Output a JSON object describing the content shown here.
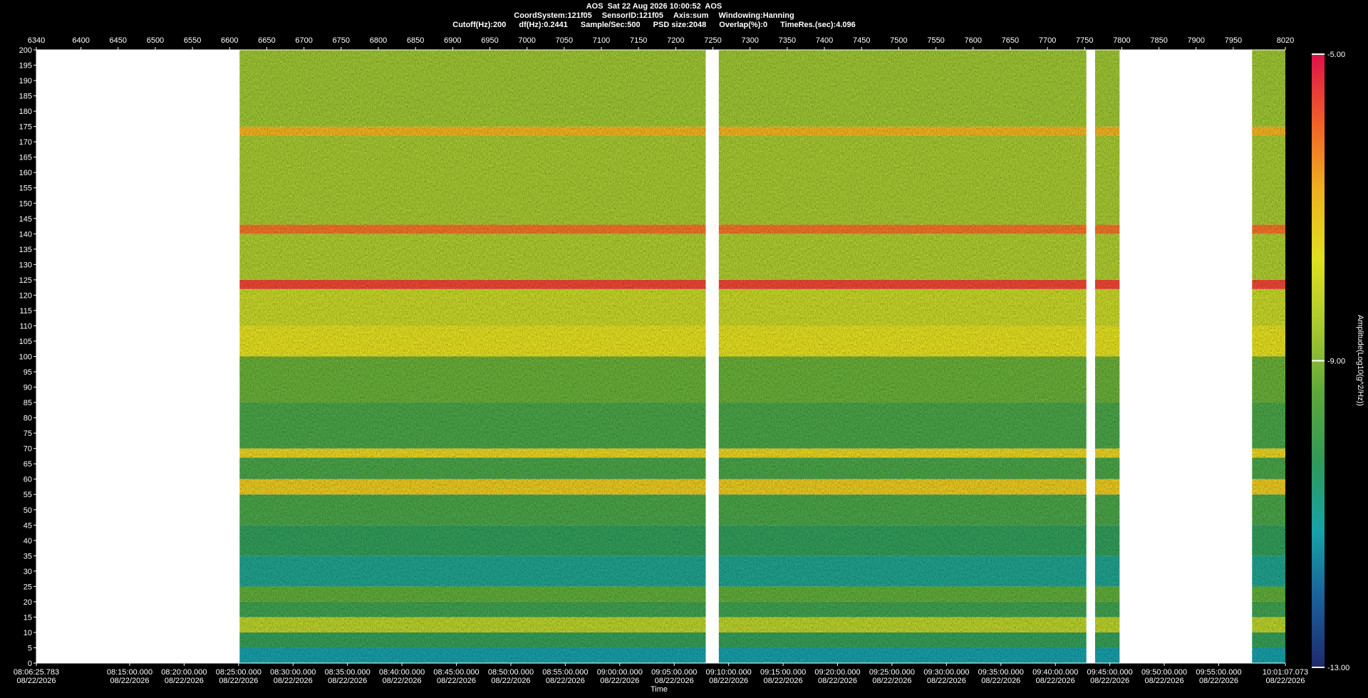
{
  "chart_data": {
    "type": "spectrogram",
    "title": "AOS  Sat 22 Aug 2026 10:00:52  AOS",
    "info_line1": [
      "CoordSystem:121f05",
      "SensorID:121f05",
      "Axis:sum",
      "Windowing:Hanning"
    ],
    "info_line2": [
      "Cutoff(Hz):200",
      "df(Hz):0.2441",
      "Sample/Sec:500",
      "PSD size:2048",
      "Overlap(%):0",
      "TimeRes.(sec):4.096"
    ],
    "x2_label": "Time",
    "colorbar_label": "Amplitude(Log10(g^2/Hz))",
    "xlim": [
      6340,
      8020
    ],
    "xticks": [
      6340,
      6400,
      6450,
      6500,
      6550,
      6600,
      6650,
      6700,
      6750,
      6800,
      6850,
      6900,
      6950,
      7000,
      7050,
      7100,
      7150,
      7200,
      7250,
      7300,
      7350,
      7400,
      7450,
      7500,
      7550,
      7600,
      7650,
      7700,
      7750,
      7800,
      7850,
      7900,
      7950,
      8020
    ],
    "ylim": [
      0,
      200
    ],
    "yticks": [
      0,
      5,
      10,
      15,
      20,
      25,
      30,
      35,
      40,
      45,
      50,
      55,
      60,
      65,
      70,
      75,
      80,
      85,
      90,
      95,
      100,
      105,
      110,
      115,
      120,
      125,
      130,
      135,
      140,
      145,
      150,
      155,
      160,
      165,
      170,
      175,
      180,
      185,
      190,
      195,
      200
    ],
    "x2lim": [
      0,
      6881.29
    ],
    "x2ticks": [
      {
        "value": 0,
        "label": "08:06:25.783"
      },
      {
        "value": 514.217,
        "label": "08:15:00.000"
      },
      {
        "value": 814.217,
        "label": "08:20:00.000"
      },
      {
        "value": 1114.217,
        "label": "08:25:00.000"
      },
      {
        "value": 1414.217,
        "label": "08:30:00.000"
      },
      {
        "value": 1714.217,
        "label": "08:35:00.000"
      },
      {
        "value": 2014.217,
        "label": "08:40:00.000"
      },
      {
        "value": 2314.217,
        "label": "08:45:00.000"
      },
      {
        "value": 2614.217,
        "label": "08:50:00.000"
      },
      {
        "value": 2914.217,
        "label": "08:55:00.000"
      },
      {
        "value": 3214.217,
        "label": "09:00:00.000"
      },
      {
        "value": 3514.217,
        "label": "09:05:00.000"
      },
      {
        "value": 3814.217,
        "label": "09:10:00.000"
      },
      {
        "value": 4114.217,
        "label": "09:15:00.000"
      },
      {
        "value": 4414.217,
        "label": "09:20:00.000"
      },
      {
        "value": 4714.217,
        "label": "09:25:00.000"
      },
      {
        "value": 5014.217,
        "label": "09:30:00.000"
      },
      {
        "value": 5314.217,
        "label": "09:35:00.000"
      },
      {
        "value": 5614.217,
        "label": "09:40:00.000"
      },
      {
        "value": 5914.217,
        "label": "09:45:00.000"
      },
      {
        "value": 6214.217,
        "label": "09:50:00.000"
      },
      {
        "value": 6514.217,
        "label": "09:55:00.000"
      },
      {
        "value": 6881.29,
        "label": "10:01:07.073"
      }
    ],
    "x2tick_dates": [
      "08/22/2026",
      "08/22/2026",
      "08/22/2026",
      "08/22/2026",
      "08/22/2026",
      "08/22/2026",
      "08/22/2026",
      "08/22/2026",
      "08/22/2026",
      "08/22/2026",
      "08/22/2026",
      "08/22/2026",
      "08/22/2026",
      "08/22/2026",
      "08/22/2026",
      "08/22/2026",
      "08/22/2026",
      "08/22/2026",
      "08/22/2026",
      "08/22/2026",
      "08/22/2026",
      "08/22/2026",
      "08/22/2026"
    ],
    "segments": [
      [
        1120,
        3688
      ],
      [
        3760,
        5785
      ],
      [
        5833,
        5968
      ],
      [
        6698,
        6881.29
      ]
    ],
    "zlim": [
      -13,
      -5
    ],
    "zticks": [
      {
        "value": -5,
        "label": "-5.00"
      },
      {
        "value": -9,
        "label": "-9.00"
      },
      {
        "value": -13,
        "label": "-13.00"
      }
    ],
    "colormap": [
      "#1e2a6e",
      "#1a5f9a",
      "#17a3a8",
      "#2f9a5a",
      "#5aa83a",
      "#a8c830",
      "#e0e020",
      "#f0b020",
      "#f06028",
      "#e0104a"
    ],
    "bands": [
      {
        "f": [
          0,
          5
        ],
        "amp": -11.3
      },
      {
        "f": [
          5,
          10
        ],
        "amp": -10.2
      },
      {
        "f": [
          10,
          15
        ],
        "amp": -8.3
      },
      {
        "f": [
          15,
          20
        ],
        "amp": -10
      },
      {
        "f": [
          20,
          25
        ],
        "amp": -9.4
      },
      {
        "f": [
          25,
          35
        ],
        "amp": -10.9
      },
      {
        "f": [
          35,
          45
        ],
        "amp": -10.3
      },
      {
        "f": [
          45,
          55
        ],
        "amp": -9.8
      },
      {
        "f": [
          55,
          60
        ],
        "amp": -7.2
      },
      {
        "f": [
          60,
          67
        ],
        "amp": -9.8
      },
      {
        "f": [
          67,
          70
        ],
        "amp": -7.4
      },
      {
        "f": [
          70,
          85
        ],
        "amp": -9.8
      },
      {
        "f": [
          85,
          100
        ],
        "amp": -9.3
      },
      {
        "f": [
          100,
          110
        ],
        "amp": -7.6
      },
      {
        "f": [
          110,
          122
        ],
        "amp": -8.1
      },
      {
        "f": [
          122,
          125
        ],
        "amp": -5.6
      },
      {
        "f": [
          125,
          140
        ],
        "amp": -8.5
      },
      {
        "f": [
          140,
          143
        ],
        "amp": -6.1
      },
      {
        "f": [
          143,
          172
        ],
        "amp": -8.6
      },
      {
        "f": [
          172,
          175
        ],
        "amp": -6.8
      },
      {
        "f": [
          175,
          200
        ],
        "amp": -8.7
      }
    ]
  }
}
